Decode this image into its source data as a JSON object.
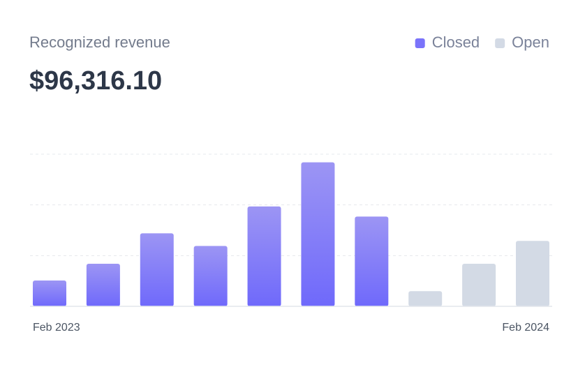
{
  "chart_data": {
    "type": "bar",
    "title": "Recognized revenue",
    "subtitle": "$96,316.10",
    "categories": [
      "Feb 2023",
      null,
      null,
      null,
      null,
      null,
      null,
      null,
      null,
      "Feb 2024"
    ],
    "series": [
      {
        "name": "Closed",
        "color": "#7a73fa",
        "values": [
          0.51,
          0.84,
          1.44,
          1.19,
          1.97,
          2.84,
          1.77,
          null,
          null,
          null
        ]
      },
      {
        "name": "Open",
        "color": "#d3dae5",
        "values": [
          null,
          null,
          null,
          null,
          null,
          null,
          null,
          0.3,
          0.84,
          1.29
        ]
      }
    ],
    "ylim": [
      0,
      3
    ],
    "yticks": [
      1,
      2,
      3
    ],
    "grid": true,
    "legend": "top-right"
  }
}
